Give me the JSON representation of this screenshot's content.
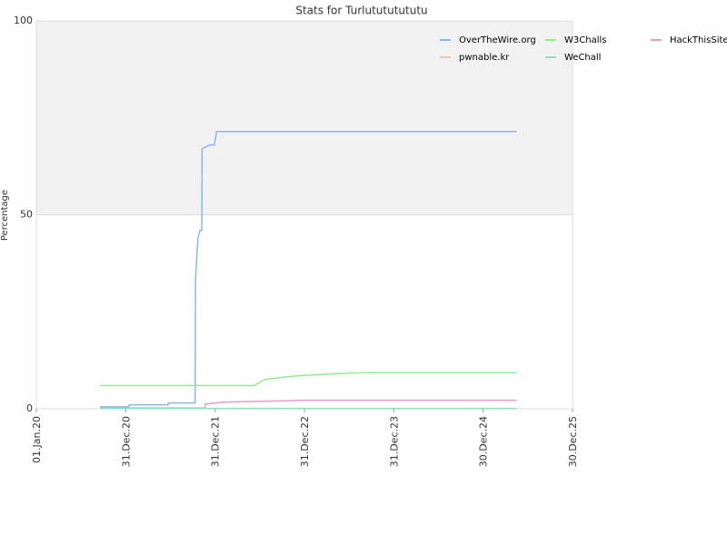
{
  "chart_data": {
    "type": "line",
    "title": "Stats for Turlutututututu",
    "y_label": "Percentage",
    "xlim": [
      "2020-01-01",
      "2025-12-30"
    ],
    "xticks": [
      {
        "value": "2020-01-01",
        "label": "01.Jan.20"
      },
      {
        "value": "2020-12-31",
        "label": "31.Dec.20"
      },
      {
        "value": "2021-12-31",
        "label": "31.Dec.21"
      },
      {
        "value": "2022-12-31",
        "label": "31.Dec.22"
      },
      {
        "value": "2023-12-31",
        "label": "31.Dec.23"
      },
      {
        "value": "2024-12-30",
        "label": "30.Dec.24"
      },
      {
        "value": "2025-12-30",
        "label": "30.Dec.25"
      }
    ],
    "ylim": [
      0,
      100
    ],
    "yticks": [
      0,
      50,
      100
    ],
    "grid": true,
    "legend": "top-right",
    "series": [
      {
        "name": "OverTheWire.org",
        "color": "#8bb8e8",
        "x": [
          "2020-09-17",
          "2021-01-13",
          "2021-01-14",
          "2021-06-22",
          "2021-06-23",
          "2021-10-11",
          "2021-10-12",
          "2021-10-22",
          "2021-10-30",
          "2021-11-07",
          "2021-11-08",
          "2021-12-08",
          "2021-12-28",
          "2022-01-06",
          "2025-05-16"
        ],
        "values": [
          0.5,
          0.5,
          1,
          1,
          1.5,
          1.5,
          33,
          44,
          46,
          46,
          67,
          68,
          68,
          71.5,
          71.5
        ]
      },
      {
        "name": "W3Challs",
        "color": "#90ee90",
        "x": [
          "2020-09-17",
          "2022-06-11",
          "2022-07-20",
          "2022-09-20",
          "2022-11-30",
          "2023-04-15",
          "2023-09-01",
          "2025-05-16"
        ],
        "values": [
          6,
          6,
          7.5,
          8,
          8.5,
          9,
          9.3,
          9.3
        ]
      },
      {
        "name": "HackThisSite",
        "color": "#e89cc8",
        "x": [
          "2020-09-17",
          "2021-11-20",
          "2021-11-21",
          "2022-01-30",
          "2022-09-01",
          "2023-01-10",
          "2025-05-16"
        ],
        "values": [
          0.2,
          0.2,
          1.2,
          1.7,
          2,
          2.2,
          2.2
        ]
      },
      {
        "name": "pwnable.kr",
        "color": "#f4c4b0",
        "x": [
          "2020-09-17",
          "2025-05-16"
        ],
        "values": [
          0.1,
          0.1
        ]
      },
      {
        "name": "WeChall",
        "color": "#90e0c0",
        "x": [
          "2020-09-17",
          "2025-05-16"
        ],
        "values": [
          0.05,
          0.05
        ]
      }
    ]
  }
}
